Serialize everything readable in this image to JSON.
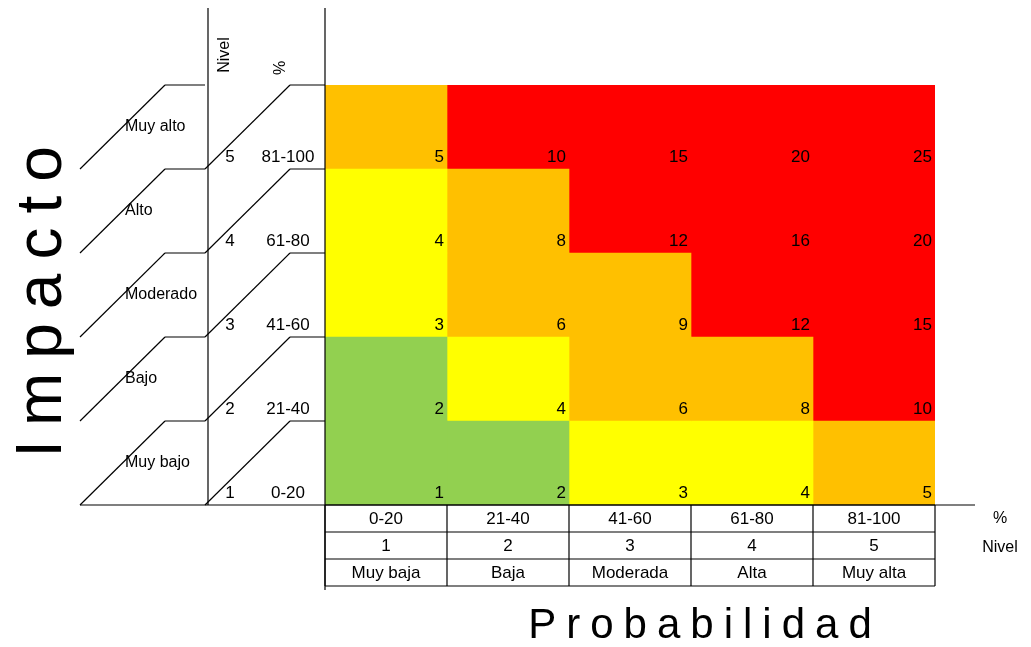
{
  "chart_data": {
    "type": "heatmap",
    "xlabel": "Probabilidad",
    "ylabel": "Impacto",
    "categories": [
      "0-20\n1\nMuy baja",
      "21-40\n2\nBaja",
      "41-60\n3\nModerada",
      "61-80\n4\nAlta",
      "81-100\n5\nMuy alta"
    ],
    "y_categories": [
      "Muy alto",
      "Alto",
      "Moderado",
      "Bajo",
      "Muy bajo"
    ],
    "y2_categories": [
      "5\n81-100",
      "4\n61-80",
      "3\n41-60",
      "2\n21-40",
      "1\n0-20"
    ],
    "cells": [
      [
        5,
        10,
        15,
        20,
        25
      ],
      [
        4,
        8,
        12,
        16,
        20
      ],
      [
        3,
        6,
        9,
        12,
        15
      ],
      [
        2,
        4,
        6,
        8,
        10
      ],
      [
        1,
        2,
        3,
        4,
        5
      ]
    ],
    "colors": [
      [
        "#ffc000",
        "#ff0000",
        "#ff0000",
        "#ff0000",
        "#ff0000"
      ],
      [
        "#ffff00",
        "#ffc000",
        "#ff0000",
        "#ff0000",
        "#ff0000"
      ],
      [
        "#ffff00",
        "#ffc000",
        "#ffc000",
        "#ff0000",
        "#ff0000"
      ],
      [
        "#92d050",
        "#ffff00",
        "#ffc000",
        "#ffc000",
        "#ff0000"
      ],
      [
        "#92d050",
        "#92d050",
        "#ffff00",
        "#ffff00",
        "#ffc000"
      ]
    ],
    "annotations": [
      "Nivel",
      "%",
      "%",
      "Nivel"
    ],
    "data_labels": true
  }
}
